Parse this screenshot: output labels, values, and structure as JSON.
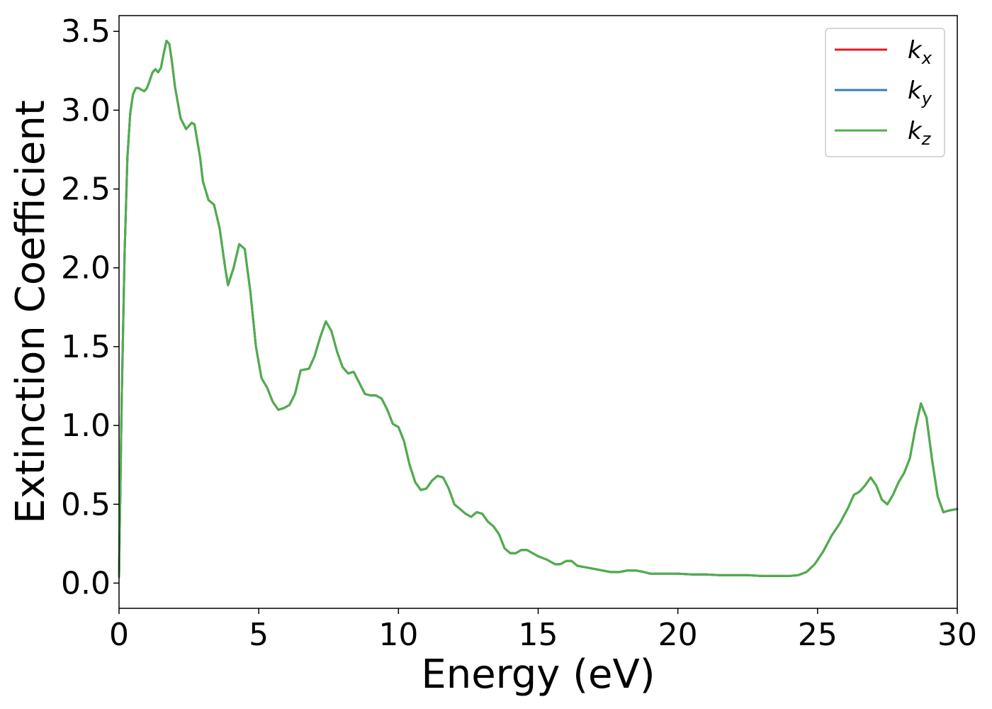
{
  "chart_data": {
    "type": "line",
    "title": "",
    "xlabel": "Energy (eV)",
    "ylabel": "Extinction Coefficient",
    "xlim": [
      0,
      30
    ],
    "ylim": [
      -0.16,
      3.6
    ],
    "xticks": [
      0,
      5,
      10,
      15,
      20,
      25,
      30
    ],
    "yticks": [
      0.0,
      0.5,
      1.0,
      1.5,
      2.0,
      2.5,
      3.0,
      3.5
    ],
    "grid": false,
    "legend_placement": "top-right",
    "series": [
      {
        "name": "k",
        "subscript": "x",
        "color": "#e41a1c",
        "x": [
          0,
          0.1,
          0.2,
          0.3,
          0.4,
          0.5,
          0.6,
          0.7,
          0.8,
          0.9,
          1.0,
          1.1,
          1.2,
          1.3,
          1.4,
          1.5,
          1.6,
          1.7,
          1.8,
          1.9,
          2.0,
          2.2,
          2.4,
          2.6,
          2.7,
          2.9,
          3.0,
          3.2,
          3.4,
          3.6,
          3.8,
          3.9,
          4.1,
          4.3,
          4.5,
          4.7,
          4.9,
          5.1,
          5.3,
          5.5,
          5.7,
          5.9,
          6.1,
          6.3,
          6.5,
          6.8,
          7.0,
          7.2,
          7.4,
          7.6,
          7.8,
          8.0,
          8.2,
          8.4,
          8.6,
          8.8,
          9.0,
          9.2,
          9.4,
          9.6,
          9.8,
          10.0,
          10.2,
          10.4,
          10.6,
          10.8,
          11.0,
          11.2,
          11.4,
          11.6,
          11.8,
          12.0,
          12.2,
          12.4,
          12.6,
          12.8,
          13.0,
          13.2,
          13.4,
          13.6,
          13.8,
          14.0,
          14.2,
          14.4,
          14.6,
          14.8,
          15.0,
          15.3,
          15.6,
          15.8,
          16.0,
          16.2,
          16.4,
          16.7,
          17.0,
          17.3,
          17.6,
          17.9,
          18.2,
          18.5,
          18.8,
          19.0,
          19.5,
          20.0,
          20.5,
          21.0,
          21.5,
          22.0,
          22.5,
          23.0,
          23.5,
          24.0,
          24.3,
          24.6,
          24.9,
          25.2,
          25.5,
          25.8,
          26.1,
          26.3,
          26.5,
          26.7,
          26.9,
          27.1,
          27.3,
          27.5,
          27.7,
          27.9,
          28.1,
          28.3,
          28.5,
          28.7,
          28.9,
          29.1,
          29.3,
          29.5,
          29.7,
          30.0
        ],
        "y": [
          0.04,
          1.2,
          2.1,
          2.7,
          2.98,
          3.1,
          3.14,
          3.14,
          3.13,
          3.12,
          3.14,
          3.19,
          3.24,
          3.26,
          3.24,
          3.27,
          3.36,
          3.44,
          3.42,
          3.3,
          3.15,
          2.95,
          2.88,
          2.92,
          2.91,
          2.7,
          2.55,
          2.43,
          2.4,
          2.25,
          2.0,
          1.89,
          2.0,
          2.15,
          2.12,
          1.85,
          1.5,
          1.3,
          1.24,
          1.15,
          1.1,
          1.11,
          1.13,
          1.2,
          1.35,
          1.36,
          1.44,
          1.56,
          1.66,
          1.6,
          1.47,
          1.37,
          1.33,
          1.34,
          1.27,
          1.2,
          1.19,
          1.19,
          1.17,
          1.1,
          1.01,
          0.99,
          0.9,
          0.75,
          0.64,
          0.59,
          0.6,
          0.65,
          0.68,
          0.67,
          0.6,
          0.5,
          0.47,
          0.44,
          0.42,
          0.45,
          0.44,
          0.39,
          0.36,
          0.31,
          0.22,
          0.19,
          0.19,
          0.21,
          0.21,
          0.19,
          0.17,
          0.15,
          0.12,
          0.12,
          0.14,
          0.14,
          0.11,
          0.1,
          0.09,
          0.08,
          0.07,
          0.07,
          0.08,
          0.08,
          0.07,
          0.06,
          0.06,
          0.06,
          0.055,
          0.055,
          0.05,
          0.05,
          0.05,
          0.045,
          0.045,
          0.045,
          0.05,
          0.07,
          0.12,
          0.2,
          0.3,
          0.38,
          0.48,
          0.56,
          0.58,
          0.62,
          0.67,
          0.62,
          0.53,
          0.5,
          0.56,
          0.64,
          0.7,
          0.79,
          0.98,
          1.14,
          1.05,
          0.78,
          0.55,
          0.45,
          0.46,
          0.47
        ]
      },
      {
        "name": "k",
        "subscript": "y",
        "color": "#377eb8",
        "x": [
          0,
          0.1,
          0.2,
          0.3,
          0.4,
          0.5,
          0.6,
          0.7,
          0.8,
          0.9,
          1.0,
          1.1,
          1.2,
          1.3,
          1.4,
          1.5,
          1.6,
          1.7,
          1.8,
          1.9,
          2.0,
          2.2,
          2.4,
          2.6,
          2.7,
          2.9,
          3.0,
          3.2,
          3.4,
          3.6,
          3.8,
          3.9,
          4.1,
          4.3,
          4.5,
          4.7,
          4.9,
          5.1,
          5.3,
          5.5,
          5.7,
          5.9,
          6.1,
          6.3,
          6.5,
          6.8,
          7.0,
          7.2,
          7.4,
          7.6,
          7.8,
          8.0,
          8.2,
          8.4,
          8.6,
          8.8,
          9.0,
          9.2,
          9.4,
          9.6,
          9.8,
          10.0,
          10.2,
          10.4,
          10.6,
          10.8,
          11.0,
          11.2,
          11.4,
          11.6,
          11.8,
          12.0,
          12.2,
          12.4,
          12.6,
          12.8,
          13.0,
          13.2,
          13.4,
          13.6,
          13.8,
          14.0,
          14.2,
          14.4,
          14.6,
          14.8,
          15.0,
          15.3,
          15.6,
          15.8,
          16.0,
          16.2,
          16.4,
          16.7,
          17.0,
          17.3,
          17.6,
          17.9,
          18.2,
          18.5,
          18.8,
          19.0,
          19.5,
          20.0,
          20.5,
          21.0,
          21.5,
          22.0,
          22.5,
          23.0,
          23.5,
          24.0,
          24.3,
          24.6,
          24.9,
          25.2,
          25.5,
          25.8,
          26.1,
          26.3,
          26.5,
          26.7,
          26.9,
          27.1,
          27.3,
          27.5,
          27.7,
          27.9,
          28.1,
          28.3,
          28.5,
          28.7,
          28.9,
          29.1,
          29.3,
          29.5,
          29.7,
          30.0
        ],
        "y": [
          0.04,
          1.2,
          2.1,
          2.7,
          2.98,
          3.1,
          3.14,
          3.14,
          3.13,
          3.12,
          3.14,
          3.19,
          3.24,
          3.26,
          3.24,
          3.27,
          3.36,
          3.44,
          3.42,
          3.3,
          3.15,
          2.95,
          2.88,
          2.92,
          2.91,
          2.7,
          2.55,
          2.43,
          2.4,
          2.25,
          2.0,
          1.89,
          2.0,
          2.15,
          2.12,
          1.85,
          1.5,
          1.3,
          1.24,
          1.15,
          1.1,
          1.11,
          1.13,
          1.2,
          1.35,
          1.36,
          1.44,
          1.56,
          1.66,
          1.6,
          1.47,
          1.37,
          1.33,
          1.34,
          1.27,
          1.2,
          1.19,
          1.19,
          1.17,
          1.1,
          1.01,
          0.99,
          0.9,
          0.75,
          0.64,
          0.59,
          0.6,
          0.65,
          0.68,
          0.67,
          0.6,
          0.5,
          0.47,
          0.44,
          0.42,
          0.45,
          0.44,
          0.39,
          0.36,
          0.31,
          0.22,
          0.19,
          0.19,
          0.21,
          0.21,
          0.19,
          0.17,
          0.15,
          0.12,
          0.12,
          0.14,
          0.14,
          0.11,
          0.1,
          0.09,
          0.08,
          0.07,
          0.07,
          0.08,
          0.08,
          0.07,
          0.06,
          0.06,
          0.06,
          0.055,
          0.055,
          0.05,
          0.05,
          0.05,
          0.045,
          0.045,
          0.045,
          0.05,
          0.07,
          0.12,
          0.2,
          0.3,
          0.38,
          0.48,
          0.56,
          0.58,
          0.62,
          0.67,
          0.62,
          0.53,
          0.5,
          0.56,
          0.64,
          0.7,
          0.79,
          0.98,
          1.14,
          1.05,
          0.78,
          0.55,
          0.45,
          0.46,
          0.47
        ]
      },
      {
        "name": "k",
        "subscript": "z",
        "color": "#4daf4a",
        "x": [
          0,
          0.1,
          0.2,
          0.3,
          0.4,
          0.5,
          0.6,
          0.7,
          0.8,
          0.9,
          1.0,
          1.1,
          1.2,
          1.3,
          1.4,
          1.5,
          1.6,
          1.7,
          1.8,
          1.9,
          2.0,
          2.2,
          2.4,
          2.6,
          2.7,
          2.9,
          3.0,
          3.2,
          3.4,
          3.6,
          3.8,
          3.9,
          4.1,
          4.3,
          4.5,
          4.7,
          4.9,
          5.1,
          5.3,
          5.5,
          5.7,
          5.9,
          6.1,
          6.3,
          6.5,
          6.8,
          7.0,
          7.2,
          7.4,
          7.6,
          7.8,
          8.0,
          8.2,
          8.4,
          8.6,
          8.8,
          9.0,
          9.2,
          9.4,
          9.6,
          9.8,
          10.0,
          10.2,
          10.4,
          10.6,
          10.8,
          11.0,
          11.2,
          11.4,
          11.6,
          11.8,
          12.0,
          12.2,
          12.4,
          12.6,
          12.8,
          13.0,
          13.2,
          13.4,
          13.6,
          13.8,
          14.0,
          14.2,
          14.4,
          14.6,
          14.8,
          15.0,
          15.3,
          15.6,
          15.8,
          16.0,
          16.2,
          16.4,
          16.7,
          17.0,
          17.3,
          17.6,
          17.9,
          18.2,
          18.5,
          18.8,
          19.0,
          19.5,
          20.0,
          20.5,
          21.0,
          21.5,
          22.0,
          22.5,
          23.0,
          23.5,
          24.0,
          24.3,
          24.6,
          24.9,
          25.2,
          25.5,
          25.8,
          26.1,
          26.3,
          26.5,
          26.7,
          26.9,
          27.1,
          27.3,
          27.5,
          27.7,
          27.9,
          28.1,
          28.3,
          28.5,
          28.7,
          28.9,
          29.1,
          29.3,
          29.5,
          29.7,
          30.0
        ],
        "y": [
          0.04,
          1.2,
          2.1,
          2.7,
          2.98,
          3.1,
          3.14,
          3.14,
          3.13,
          3.12,
          3.14,
          3.19,
          3.24,
          3.26,
          3.24,
          3.27,
          3.36,
          3.44,
          3.42,
          3.3,
          3.15,
          2.95,
          2.88,
          2.92,
          2.91,
          2.7,
          2.55,
          2.43,
          2.4,
          2.25,
          2.0,
          1.89,
          2.0,
          2.15,
          2.12,
          1.85,
          1.5,
          1.3,
          1.24,
          1.15,
          1.1,
          1.11,
          1.13,
          1.2,
          1.35,
          1.36,
          1.44,
          1.56,
          1.66,
          1.6,
          1.47,
          1.37,
          1.33,
          1.34,
          1.27,
          1.2,
          1.19,
          1.19,
          1.17,
          1.1,
          1.01,
          0.99,
          0.9,
          0.75,
          0.64,
          0.59,
          0.6,
          0.65,
          0.68,
          0.67,
          0.6,
          0.5,
          0.47,
          0.44,
          0.42,
          0.45,
          0.44,
          0.39,
          0.36,
          0.31,
          0.22,
          0.19,
          0.19,
          0.21,
          0.21,
          0.19,
          0.17,
          0.15,
          0.12,
          0.12,
          0.14,
          0.14,
          0.11,
          0.1,
          0.09,
          0.08,
          0.07,
          0.07,
          0.08,
          0.08,
          0.07,
          0.06,
          0.06,
          0.06,
          0.055,
          0.055,
          0.05,
          0.05,
          0.05,
          0.045,
          0.045,
          0.045,
          0.05,
          0.07,
          0.12,
          0.2,
          0.3,
          0.38,
          0.48,
          0.56,
          0.58,
          0.62,
          0.67,
          0.62,
          0.53,
          0.5,
          0.56,
          0.64,
          0.7,
          0.79,
          0.98,
          1.14,
          1.05,
          0.78,
          0.55,
          0.45,
          0.46,
          0.47
        ]
      }
    ]
  }
}
